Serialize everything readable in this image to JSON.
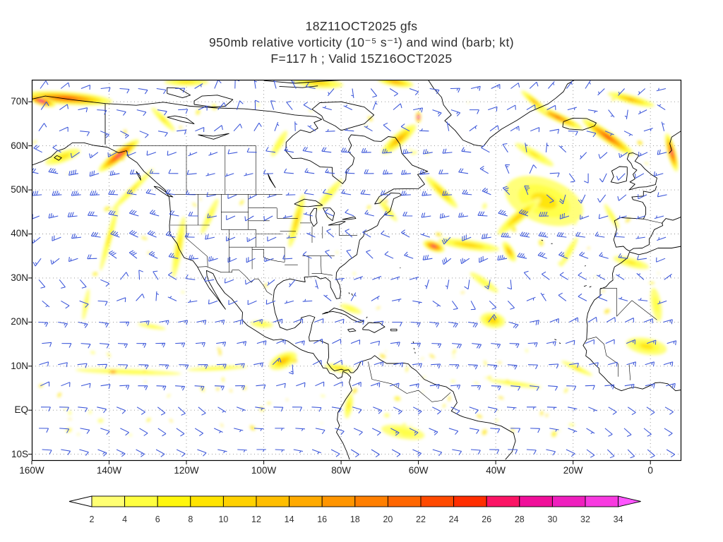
{
  "page_title": "GFS 950mb relative vorticity and wind forecast map",
  "title": {
    "line1": "18Z11OCT2025 gfs",
    "line2": "950mb relative vorticity (10⁻⁵ s⁻¹) and wind (barb; kt)",
    "line3": "F=117 h ; Valid 15Z16OCT2025"
  },
  "chart_data": {
    "type": "heatmap",
    "field": "relative vorticity",
    "level": "950mb",
    "units": "10⁻⁵ s⁻¹",
    "model": "gfs",
    "init_time": "18Z11OCT2025",
    "forecast_hour": 117,
    "valid_time": "15Z16OCT2025",
    "projection": "latlon",
    "grid_style": "dotted",
    "lon_range": [
      -160,
      8
    ],
    "lat_range": [
      -11.5,
      75
    ],
    "lon_ticks": [
      {
        "lon": -160,
        "label": "160W"
      },
      {
        "lon": -140,
        "label": "140W"
      },
      {
        "lon": -120,
        "label": "120W"
      },
      {
        "lon": -100,
        "label": "100W"
      },
      {
        "lon": -80,
        "label": "80W"
      },
      {
        "lon": -60,
        "label": "60W"
      },
      {
        "lon": -40,
        "label": "40W"
      },
      {
        "lon": -20,
        "label": "20W"
      },
      {
        "lon": 0,
        "label": "0"
      }
    ],
    "lat_ticks": [
      {
        "lat": 70,
        "label": "70N"
      },
      {
        "lat": 60,
        "label": "60N"
      },
      {
        "lat": 50,
        "label": "50N"
      },
      {
        "lat": 40,
        "label": "40N"
      },
      {
        "lat": 30,
        "label": "30N"
      },
      {
        "lat": 20,
        "label": "20N"
      },
      {
        "lat": 10,
        "label": "10N"
      },
      {
        "lat": 0,
        "label": "EQ"
      },
      {
        "lat": -10,
        "label": "10S"
      }
    ],
    "wind": {
      "glyph": "barb",
      "units": "kt",
      "color": "#3a55d9",
      "grid_spacing_deg": 5
    },
    "colorbar": {
      "ticks": [
        2,
        4,
        6,
        8,
        10,
        12,
        14,
        16,
        18,
        20,
        22,
        24,
        26,
        28,
        30,
        32,
        34
      ],
      "segment_colors": [
        "#ffff73",
        "#ffff40",
        "#fff70d",
        "#ffe400",
        "#ffd100",
        "#ffbe00",
        "#ffaa00",
        "#ff9500",
        "#ff7f00",
        "#ff6600",
        "#ff4a00",
        "#ff2e00",
        "#fb1465",
        "#f00f9a",
        "#ef1fbe",
        "#f83ae0"
      ],
      "below_color": "#ffffff",
      "above_color": "#ff55ff",
      "label_color": "#333333"
    },
    "vorticity_features_format": [
      "lon",
      "lat",
      "max_value",
      "length_px",
      "aspect",
      "angle_deg"
    ],
    "vorticity_features": [
      [
        -151,
        70.8,
        24,
        130,
        0.14,
        4
      ],
      [
        -157.5,
        70.2,
        31,
        42,
        0.3,
        18
      ],
      [
        -137.5,
        57.8,
        28,
        72,
        0.22,
        -38
      ],
      [
        -134,
        50,
        8,
        85,
        0.1,
        135
      ],
      [
        -140,
        39,
        8,
        95,
        0.09,
        105
      ],
      [
        -122,
        37,
        10,
        88,
        0.13,
        100
      ],
      [
        -114,
        44,
        6,
        55,
        0.18,
        115
      ],
      [
        -91.5,
        43,
        12,
        78,
        0.15,
        105
      ],
      [
        -83,
        49,
        7,
        55,
        0.2,
        130
      ],
      [
        -65,
        61.5,
        16,
        62,
        0.28,
        140
      ],
      [
        -60,
        66.5,
        33,
        16,
        0.5,
        90
      ],
      [
        -54,
        49.5,
        13,
        62,
        0.2,
        45
      ],
      [
        -27.5,
        48,
        28,
        36,
        0.65,
        0
      ],
      [
        -27.5,
        47.5,
        9,
        115,
        0.55,
        20
      ],
      [
        -34,
        44,
        13,
        78,
        0.2,
        140
      ],
      [
        -56,
        37.2,
        27,
        32,
        0.45,
        20
      ],
      [
        -47,
        37.5,
        12,
        88,
        0.16,
        8
      ],
      [
        -36.5,
        36,
        15,
        32,
        0.4,
        60
      ],
      [
        -40.5,
        20.6,
        36,
        14,
        0.8,
        0
      ],
      [
        -40.8,
        20.4,
        12,
        36,
        0.6,
        10
      ],
      [
        -94,
        11,
        36,
        13,
        0.8,
        0
      ],
      [
        -95,
        11.2,
        14,
        42,
        0.5,
        -25
      ],
      [
        -135,
        8.7,
        6,
        150,
        0.05,
        2
      ],
      [
        -139,
        8.7,
        22,
        17,
        0.35,
        0
      ],
      [
        -112,
        9.5,
        7,
        85,
        0.07,
        -3
      ],
      [
        -80.5,
        9.5,
        10,
        42,
        0.25,
        10
      ],
      [
        -35,
        6,
        6,
        75,
        0.09,
        8
      ],
      [
        -19,
        9.5,
        8,
        48,
        0.15,
        25
      ],
      [
        -5,
        33.5,
        8,
        52,
        0.25,
        15
      ],
      [
        -1,
        14.5,
        9,
        58,
        0.4,
        10
      ],
      [
        1.5,
        24,
        6,
        48,
        0.3,
        80
      ],
      [
        -24,
        66.5,
        20,
        78,
        0.16,
        25
      ],
      [
        -11,
        62,
        24,
        88,
        0.18,
        35
      ],
      [
        5.5,
        58.5,
        27,
        56,
        0.22,
        75
      ],
      [
        -5,
        70.5,
        14,
        68,
        0.18,
        15
      ],
      [
        -30,
        70,
        14,
        48,
        0.2,
        40
      ],
      [
        -96,
        60.5,
        7,
        42,
        0.25,
        120
      ],
      [
        -77.5,
        23,
        6,
        32,
        0.3,
        20
      ],
      [
        -100.5,
        19.5,
        6,
        32,
        0.3,
        5
      ],
      [
        -43,
        29,
        6,
        48,
        0.22,
        35
      ],
      [
        -152,
        57.5,
        10,
        52,
        0.3,
        -20
      ],
      [
        -126,
        66,
        8,
        46,
        0.2,
        45
      ],
      [
        -68,
        45.5,
        8,
        42,
        0.2,
        50
      ],
      [
        -30,
        58,
        8,
        62,
        0.2,
        30
      ],
      [
        -21,
        36,
        7,
        46,
        0.2,
        120
      ],
      [
        -64,
        -5,
        7,
        62,
        0.3,
        10
      ],
      [
        -78,
        1,
        8,
        36,
        0.3,
        100
      ],
      [
        -86,
        74.3,
        12,
        72,
        0.2,
        5
      ],
      [
        -120,
        74.5,
        10,
        62,
        0.18,
        0
      ],
      [
        -66,
        74.5,
        16,
        52,
        0.25,
        10
      ],
      [
        -10,
        44,
        6,
        40,
        0.2,
        60
      ],
      [
        -129,
        19,
        5,
        40,
        0.15,
        10
      ],
      [
        -146,
        24,
        5,
        45,
        0.15,
        100
      ]
    ],
    "wind_vortices_format": [
      "lon",
      "lat",
      "strength_kt",
      "radius_deg"
    ],
    "wind_vortices": [
      [
        -27.5,
        48,
        26,
        6.5
      ],
      [
        -56,
        37,
        20,
        4
      ],
      [
        -40.5,
        20.6,
        26,
        2.2
      ],
      [
        -94,
        11,
        26,
        2.2
      ],
      [
        -150,
        56,
        16,
        7
      ],
      [
        -60,
        66.5,
        14,
        4.5
      ],
      [
        -88,
        74,
        10,
        5
      ],
      [
        -35,
        31,
        -10,
        11
      ],
      [
        -140,
        33,
        -10,
        11
      ]
    ]
  }
}
